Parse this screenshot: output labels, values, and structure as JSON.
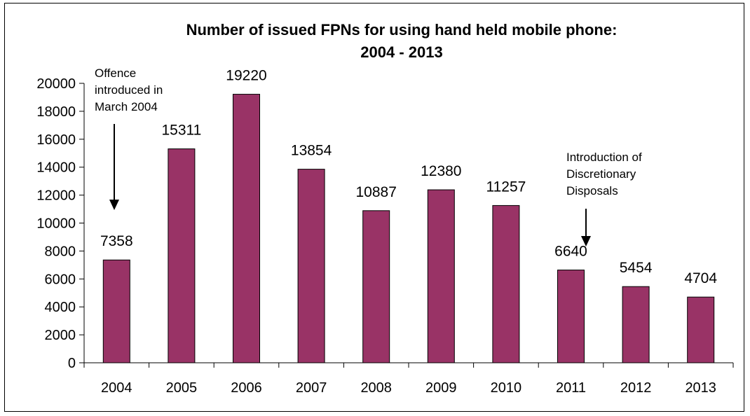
{
  "chart_data": {
    "type": "bar",
    "title_lines": [
      "Number of issued FPNs for using hand held mobile phone:",
      "2004 - 2013"
    ],
    "categories": [
      "2004",
      "2005",
      "2006",
      "2007",
      "2008",
      "2009",
      "2010",
      "2011",
      "2012",
      "2013"
    ],
    "values": [
      7358,
      15311,
      19220,
      13854,
      10887,
      12380,
      11257,
      6640,
      5454,
      4704
    ],
    "data_labels": [
      "7358",
      "15311",
      "19220",
      "13854",
      "10887",
      "12380",
      "11257",
      "6640",
      "5454",
      "4704"
    ],
    "ylim": [
      0,
      20000
    ],
    "yticks": [
      0,
      2000,
      4000,
      6000,
      8000,
      10000,
      12000,
      14000,
      16000,
      18000,
      20000
    ],
    "ytick_labels": [
      "0",
      "2000",
      "4000",
      "6000",
      "8000",
      "10000",
      "12000",
      "14000",
      "16000",
      "18000",
      "20000"
    ],
    "bar_color": "#993366",
    "grid": false,
    "legend": "none",
    "annotations": [
      {
        "category": "2004",
        "lines": [
          "Offence",
          "introduced in",
          "March 2004"
        ]
      },
      {
        "category": "2011",
        "lines": [
          "Introduction of",
          "Discretionary",
          "Disposals"
        ]
      }
    ]
  }
}
